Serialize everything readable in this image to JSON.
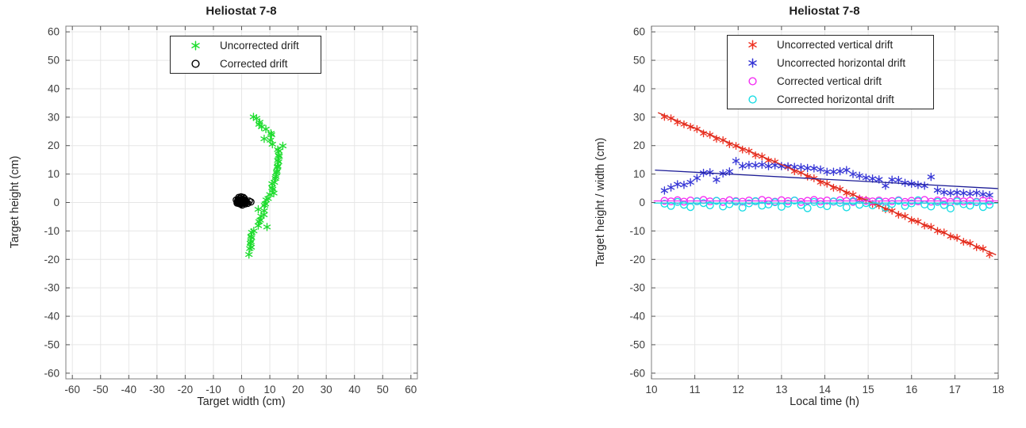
{
  "window": {
    "background": "#ffffff"
  },
  "palette": {
    "green": "#1edc2e",
    "black": "#000000",
    "red": "#ee3324",
    "red_fit": "#d8291b",
    "blue": "#3636d6",
    "blue_fit": "#1c1c96",
    "magenta": "#f32cf3",
    "cyan": "#19dce4",
    "grid": "#e6e6e6",
    "box": "#7f7f7f",
    "tick": "#555555",
    "tick_label": "#3d3d3d"
  },
  "chart_data": [
    {
      "type": "scatter",
      "title": "Heliostat 7-8",
      "xlabel": "Target width (cm)",
      "ylabel": "Target height (cm)",
      "xlim": [
        -60,
        60
      ],
      "ylim": [
        -60,
        60
      ],
      "xticks": [
        -60,
        -50,
        -40,
        -30,
        -20,
        -10,
        0,
        10,
        20,
        30,
        40,
        50,
        60
      ],
      "yticks": [
        -60,
        -50,
        -40,
        -30,
        -20,
        -10,
        0,
        10,
        20,
        30,
        40,
        50,
        60
      ],
      "grid": true,
      "legend": {
        "position": "top-center",
        "entries": [
          {
            "label": "Uncorrected drift",
            "marker": "asterisk",
            "color": "#1edc2e"
          },
          {
            "label": "Corrected drift",
            "marker": "circle",
            "color": "#000000"
          }
        ]
      },
      "series": [
        {
          "name": "Uncorrected drift",
          "marker": "asterisk",
          "color": "#1edc2e",
          "size": 4.6,
          "points": [
            [
              4.2,
              30.1
            ],
            [
              5.3,
              29.6
            ],
            [
              6.4,
              28.2
            ],
            [
              6.2,
              27.5
            ],
            [
              7.1,
              26.6
            ],
            [
              8.6,
              25.8
            ],
            [
              10.4,
              24.3
            ],
            [
              10.6,
              23.8
            ],
            [
              8.0,
              22.4
            ],
            [
              10.2,
              21.9
            ],
            [
              10.9,
              20.5
            ],
            [
              14.6,
              19.9
            ],
            [
              12.8,
              18.6
            ],
            [
              13.2,
              18.1
            ],
            [
              13.1,
              16.6
            ],
            [
              13.3,
              16.2
            ],
            [
              12.8,
              14.8
            ],
            [
              13.1,
              14.3
            ],
            [
              12.8,
              12.8
            ],
            [
              12.7,
              12.4
            ],
            [
              12.5,
              11.0
            ],
            [
              12.4,
              10.5
            ],
            [
              12.1,
              9.1
            ],
            [
              12.0,
              8.5
            ],
            [
              11.6,
              7.1
            ],
            [
              10.8,
              6.6
            ],
            [
              10.8,
              5.2
            ],
            [
              11.0,
              4.7
            ],
            [
              11.4,
              3.3
            ],
            [
              10.0,
              2.8
            ],
            [
              9.4,
              1.4
            ],
            [
              8.7,
              0.9
            ],
            [
              8.4,
              -0.5
            ],
            [
              8.1,
              -1.0
            ],
            [
              5.9,
              -2.4
            ],
            [
              8.0,
              -2.9
            ],
            [
              7.9,
              -4.3
            ],
            [
              6.9,
              -4.8
            ],
            [
              6.6,
              -6.2
            ],
            [
              6.2,
              -6.7
            ],
            [
              5.9,
              -8.1
            ],
            [
              9.0,
              -8.6
            ],
            [
              4.3,
              -10.0
            ],
            [
              3.6,
              -10.5
            ],
            [
              3.3,
              -11.9
            ],
            [
              3.5,
              -12.4
            ],
            [
              3.3,
              -13.8
            ],
            [
              3.1,
              -14.3
            ],
            [
              3.4,
              -15.7
            ],
            [
              2.9,
              -16.2
            ],
            [
              2.6,
              -18.3
            ]
          ]
        },
        {
          "name": "Corrected drift",
          "marker": "circle",
          "color": "#000000",
          "size": 3.9,
          "points": [
            [
              -0.8,
              0.6,
              1
            ],
            [
              0.3,
              1.2,
              1
            ],
            [
              -1.5,
              0.2,
              1
            ],
            [
              0.9,
              -0.1,
              1
            ],
            [
              -0.3,
              -0.6,
              1
            ],
            [
              1.2,
              0.8,
              0
            ],
            [
              -1.9,
              0.9,
              0
            ],
            [
              0.1,
              0.3,
              1
            ],
            [
              -0.9,
              -0.4,
              1
            ],
            [
              1.5,
              0.4,
              0
            ],
            [
              -0.5,
              1.5,
              0
            ],
            [
              0.6,
              1.8,
              0
            ],
            [
              -1.2,
              1.1,
              1
            ],
            [
              0.2,
              -0.9,
              0
            ],
            [
              1.0,
              1.4,
              0
            ],
            [
              -1.6,
              -0.2,
              0
            ],
            [
              0.8,
              0.9,
              1
            ],
            [
              -0.2,
              2.0,
              0
            ],
            [
              1.8,
              0.1,
              0
            ],
            [
              -1.0,
              1.8,
              0
            ],
            [
              0.4,
              0.7,
              1
            ],
            [
              -0.6,
              0.1,
              1
            ],
            [
              1.3,
              -0.5,
              0
            ],
            [
              0.0,
              1.0,
              1
            ],
            [
              -1.4,
              0.6,
              1
            ],
            [
              0.7,
              0.2,
              1
            ],
            [
              2.7,
              0.5,
              0
            ],
            [
              3.3,
              0.2,
              0
            ],
            [
              2.2,
              -0.3,
              0
            ]
          ]
        }
      ]
    },
    {
      "type": "scatter",
      "title": "Heliostat 7-8",
      "xlabel": "Local time (h)",
      "ylabel": "Target height / width (cm)",
      "xlim": [
        10,
        18
      ],
      "ylim": [
        -60,
        60
      ],
      "xticks": [
        10,
        11,
        12,
        13,
        14,
        15,
        16,
        17,
        18
      ],
      "yticks": [
        -60,
        -50,
        -40,
        -30,
        -20,
        -10,
        0,
        10,
        20,
        30,
        40,
        50,
        60
      ],
      "grid": true,
      "legend": {
        "position": "top-center",
        "entries": [
          {
            "label": "Uncorrected vertical drift",
            "marker": "asterisk",
            "color": "#ee3324"
          },
          {
            "label": "Uncorrected horizontal drift",
            "marker": "asterisk",
            "color": "#3636d6"
          },
          {
            "label": "Corrected vertical drift",
            "marker": "circle",
            "color": "#f32cf3"
          },
          {
            "label": "Corrected horizontal drift",
            "marker": "circle",
            "color": "#19dce4"
          }
        ]
      },
      "x": [
        10.3,
        10.45,
        10.6,
        10.75,
        10.9,
        11.05,
        11.2,
        11.35,
        11.5,
        11.65,
        11.8,
        11.95,
        12.1,
        12.25,
        12.4,
        12.55,
        12.7,
        12.85,
        13.0,
        13.15,
        13.3,
        13.45,
        13.6,
        13.75,
        13.9,
        14.05,
        14.2,
        14.35,
        14.5,
        14.65,
        14.8,
        14.95,
        15.1,
        15.25,
        15.4,
        15.55,
        15.7,
        15.85,
        16.0,
        16.15,
        16.3,
        16.45,
        16.6,
        16.75,
        16.9,
        17.05,
        17.2,
        17.35,
        17.5,
        17.65,
        17.8
      ],
      "series": [
        {
          "name": "Uncorrected vertical drift",
          "marker": "asterisk",
          "color": "#ee3324",
          "size": 4.3,
          "values": [
            30.1,
            29.6,
            28.2,
            27.5,
            26.6,
            25.8,
            24.3,
            23.8,
            22.4,
            21.9,
            20.5,
            19.9,
            18.6,
            18.1,
            16.6,
            16.2,
            14.8,
            14.3,
            12.8,
            12.4,
            11.0,
            10.5,
            9.1,
            8.5,
            7.1,
            6.6,
            5.2,
            4.7,
            3.3,
            2.8,
            1.4,
            0.9,
            -0.5,
            -1.0,
            -2.4,
            -2.9,
            -4.3,
            -4.8,
            -6.2,
            -6.7,
            -8.1,
            -8.6,
            -10.0,
            -10.5,
            -11.9,
            -12.4,
            -13.8,
            -14.3,
            -15.7,
            -16.2,
            -18.3
          ]
        },
        {
          "name": "Uncorrected horizontal drift",
          "marker": "asterisk",
          "color": "#3636d6",
          "size": 4.6,
          "values": [
            4.2,
            5.3,
            6.4,
            6.2,
            7.1,
            8.6,
            10.4,
            10.6,
            8.0,
            10.2,
            10.9,
            14.6,
            12.8,
            13.2,
            13.1,
            13.3,
            12.8,
            13.1,
            12.8,
            12.7,
            12.5,
            12.4,
            12.1,
            12.0,
            11.6,
            10.8,
            10.8,
            11.0,
            11.4,
            10.0,
            9.4,
            8.7,
            8.4,
            8.1,
            5.9,
            8.0,
            7.9,
            6.9,
            6.6,
            6.2,
            5.9,
            9.0,
            4.3,
            3.6,
            3.3,
            3.5,
            3.3,
            3.1,
            3.4,
            2.9,
            2.6
          ]
        },
        {
          "name": "Corrected vertical drift",
          "marker": "circle",
          "color": "#f32cf3",
          "size": 4.3,
          "values": [
            0.6,
            0.4,
            0.8,
            0.3,
            0.7,
            0.5,
            0.9,
            0.4,
            0.6,
            0.2,
            0.8,
            0.5,
            0.3,
            0.7,
            0.4,
            0.9,
            0.6,
            0.3,
            0.8,
            0.5,
            0.7,
            0.2,
            0.6,
            0.9,
            0.4,
            0.7,
            0.3,
            0.8,
            0.5,
            0.2,
            0.9,
            0.6,
            0.4,
            0.7,
            0.3,
            0.5,
            0.8,
            0.2,
            0.6,
            0.4,
            0.9,
            0.3,
            0.7,
            0.5,
            0.2,
            0.8,
            0.4,
            0.6,
            0.3,
            0.7,
            0.5
          ]
        },
        {
          "name": "Corrected horizontal drift",
          "marker": "circle",
          "color": "#19dce4",
          "size": 4.3,
          "values": [
            -0.4,
            -1.2,
            0.2,
            -0.8,
            -1.6,
            0.4,
            -0.2,
            -1.0,
            0.6,
            -1.4,
            -0.6,
            0.3,
            -1.8,
            -0.3,
            0.5,
            -1.1,
            -0.7,
            0.1,
            -1.5,
            -0.4,
            0.7,
            -0.9,
            -2.0,
            0.2,
            -0.6,
            -1.3,
            0.4,
            -0.1,
            -1.7,
            0.5,
            -0.8,
            -0.2,
            -1.0,
            0.3,
            -1.9,
            -0.5,
            0.6,
            -1.2,
            -0.3,
            0.8,
            -0.7,
            -1.4,
            0.2,
            -0.9,
            -2.1,
            0.4,
            -0.6,
            -1.1,
            0.1,
            -1.6,
            -0.8
          ]
        }
      ],
      "fit_lines": [
        {
          "name": "Uncorrected vertical drift fit",
          "color": "#d8291b",
          "from": [
            10.15,
            31.6
          ],
          "to": [
            17.95,
            -18.4
          ]
        },
        {
          "name": "Uncorrected horizontal drift fit",
          "color": "#1c1c96",
          "from": [
            10.08,
            11.4
          ],
          "to": [
            18.0,
            4.9
          ]
        },
        {
          "name": "Corrected vertical drift fit",
          "color": "#f32cf3",
          "from": [
            10.05,
            0.55
          ],
          "to": [
            18.0,
            0.55
          ]
        },
        {
          "name": "Corrected horizontal drift fit",
          "color": "#19dce4",
          "from": [
            10.05,
            -0.2
          ],
          "to": [
            18.0,
            -0.2
          ]
        }
      ]
    }
  ]
}
